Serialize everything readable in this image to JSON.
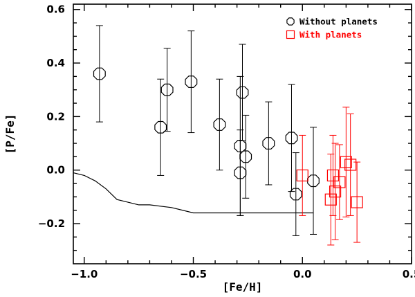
{
  "chart_data": {
    "type": "scatter",
    "title": "",
    "xlabel": "[Fe/H]",
    "ylabel": "[P/Fe]",
    "xlim": [
      -1.05,
      0.5
    ],
    "ylim": [
      -0.35,
      0.62
    ],
    "xticks": [
      -1.0,
      -0.5,
      0.0,
      0.5
    ],
    "xtick_labels": [
      "−1.0",
      "−0.5",
      "0.0",
      "0.5"
    ],
    "yticks": [
      -0.2,
      0.0,
      0.2,
      0.4,
      0.6
    ],
    "ytick_labels": [
      "−0.2",
      "0.0",
      "0.2",
      "0.4",
      "0.6"
    ],
    "legend_position": "top-right",
    "series": [
      {
        "name": "Without planets",
        "marker": "octagon",
        "color": "#000000",
        "points": [
          {
            "x": -0.93,
            "y": 0.36,
            "err": 0.18
          },
          {
            "x": -0.65,
            "y": 0.16,
            "err": 0.18
          },
          {
            "x": -0.62,
            "y": 0.3,
            "err": 0.155
          },
          {
            "x": -0.51,
            "y": 0.33,
            "err": 0.19
          },
          {
            "x": -0.38,
            "y": 0.17,
            "err": 0.17
          },
          {
            "x": -0.285,
            "y": 0.09,
            "err": 0.26
          },
          {
            "x": -0.285,
            "y": -0.01,
            "err": 0.16
          },
          {
            "x": -0.275,
            "y": 0.29,
            "err": 0.18
          },
          {
            "x": -0.26,
            "y": 0.05,
            "err": 0.155
          },
          {
            "x": -0.155,
            "y": 0.1,
            "err": 0.155
          },
          {
            "x": -0.05,
            "y": 0.12,
            "err": 0.2
          },
          {
            "x": -0.03,
            "y": -0.09,
            "err": 0.155
          },
          {
            "x": 0.05,
            "y": -0.04,
            "err": 0.2
          }
        ]
      },
      {
        "name": "With planets",
        "marker": "square",
        "color": "#ff0000",
        "points": [
          {
            "x": 0.0,
            "y": -0.02,
            "err": 0.15
          },
          {
            "x": 0.13,
            "y": -0.11,
            "err": 0.17
          },
          {
            "x": 0.14,
            "y": -0.02,
            "err": 0.15
          },
          {
            "x": 0.15,
            "y": -0.08,
            "err": 0.18
          },
          {
            "x": 0.17,
            "y": -0.045,
            "err": 0.14
          },
          {
            "x": 0.2,
            "y": 0.03,
            "err": 0.205
          },
          {
            "x": 0.22,
            "y": 0.02,
            "err": 0.19
          },
          {
            "x": 0.25,
            "y": -0.12,
            "err": 0.15
          }
        ]
      }
    ],
    "line": {
      "name": "model curve",
      "color": "#000000",
      "x": [
        -1.05,
        -1.0,
        -0.95,
        -0.9,
        -0.85,
        -0.8,
        -0.75,
        -0.7,
        -0.6,
        -0.5,
        -0.4,
        -0.3,
        -0.2,
        -0.1,
        0.0,
        0.05
      ],
      "y": [
        -0.01,
        -0.02,
        -0.04,
        -0.07,
        -0.11,
        -0.12,
        -0.13,
        -0.13,
        -0.14,
        -0.16,
        -0.16,
        -0.16,
        -0.16,
        -0.16,
        -0.16,
        -0.16
      ]
    }
  }
}
